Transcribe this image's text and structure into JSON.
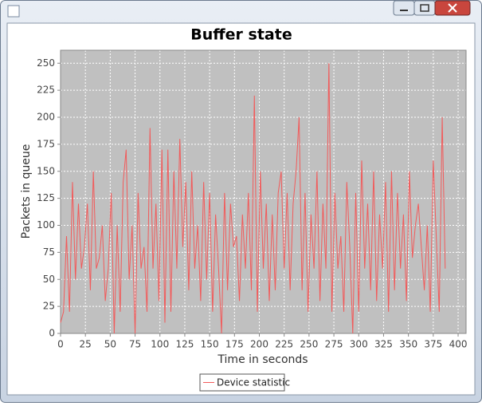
{
  "chart_data": {
    "type": "line",
    "title": "Buffer state",
    "x_label": "Time in seconds",
    "y_label": "Packets in queue",
    "x": [
      0,
      3,
      6,
      9,
      12,
      15,
      18,
      21,
      24,
      27,
      30,
      33,
      36,
      39,
      42,
      45,
      48,
      51,
      54,
      57,
      60,
      63,
      66,
      69,
      72,
      75,
      78,
      81,
      84,
      87,
      90,
      93,
      96,
      99,
      102,
      105,
      108,
      111,
      114,
      117,
      120,
      123,
      126,
      129,
      132,
      135,
      138,
      141,
      144,
      147,
      150,
      153,
      156,
      159,
      162,
      165,
      168,
      171,
      174,
      177,
      180,
      183,
      186,
      189,
      192,
      195,
      198,
      201,
      204,
      207,
      210,
      213,
      216,
      219,
      222,
      225,
      228,
      231,
      234,
      237,
      240,
      243,
      246,
      249,
      252,
      255,
      258,
      261,
      264,
      267,
      270,
      273,
      276,
      279,
      282,
      285,
      288,
      291,
      294,
      297,
      300,
      303,
      306,
      309,
      312,
      315,
      318,
      321,
      324,
      327,
      330,
      333,
      336,
      339,
      342,
      345,
      348,
      351,
      354,
      357,
      360,
      363,
      366,
      369,
      372,
      375,
      378,
      381,
      384,
      387
    ],
    "series": [
      {
        "name": "Device statistic",
        "color": "#f25a5a",
        "values": [
          10,
          20,
          90,
          20,
          140,
          50,
          120,
          60,
          80,
          120,
          40,
          150,
          60,
          70,
          100,
          30,
          60,
          130,
          0,
          100,
          20,
          140,
          170,
          50,
          100,
          0,
          130,
          60,
          80,
          20,
          190,
          60,
          120,
          30,
          170,
          10,
          170,
          20,
          150,
          60,
          180,
          80,
          140,
          40,
          150,
          60,
          100,
          30,
          140,
          50,
          130,
          20,
          110,
          60,
          0,
          130,
          40,
          120,
          80,
          90,
          30,
          110,
          60,
          130,
          40,
          220,
          20,
          150,
          60,
          120,
          30,
          110,
          40,
          130,
          150,
          60,
          130,
          40,
          120,
          150,
          200,
          40,
          130,
          20,
          110,
          60,
          150,
          30,
          120,
          60,
          250,
          20,
          130,
          60,
          90,
          20,
          140,
          80,
          0,
          130,
          20,
          160,
          60,
          120,
          40,
          150,
          30,
          110,
          60,
          140,
          20,
          150,
          40,
          130,
          60,
          110,
          30,
          150,
          70,
          100,
          120,
          80,
          40,
          100,
          20,
          160,
          90,
          20,
          200,
          60
        ]
      }
    ],
    "xlim": [
      0,
      408
    ],
    "ylim": [
      0,
      262
    ],
    "xticks": [
      0,
      25,
      50,
      75,
      100,
      125,
      150,
      175,
      200,
      225,
      250,
      275,
      300,
      325,
      350,
      375,
      400
    ],
    "yticks": [
      0,
      25,
      50,
      75,
      100,
      125,
      150,
      175,
      200,
      225,
      250
    ],
    "grid": true
  }
}
